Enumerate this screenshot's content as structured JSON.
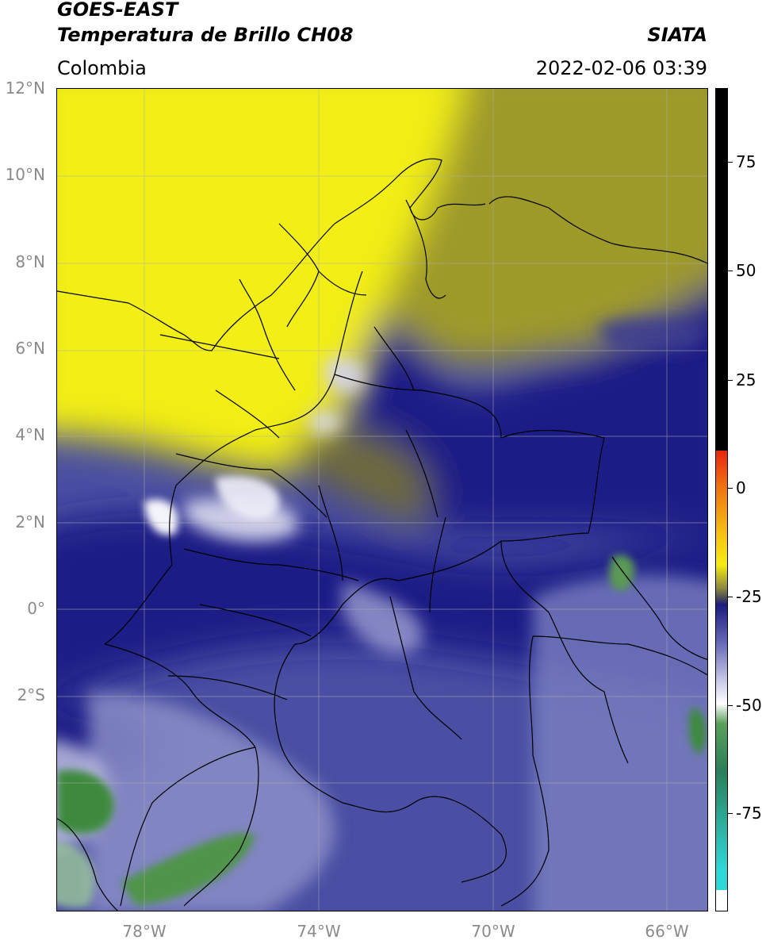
{
  "header": {
    "title_line1": "GOES-EAST",
    "title_line2": "Temperatura de Brillo CH08",
    "agency": "SIATA",
    "region": "Colombia",
    "datetime": "2022-02-06 03:39"
  },
  "map": {
    "lat_labels": [
      "12°N",
      "10°N",
      "8°N",
      "6°N",
      "4°N",
      "2°N",
      "0°",
      "2°S"
    ],
    "lon_labels": [
      "78°W",
      "74°W",
      "70°W",
      "66°W"
    ],
    "colors": {
      "dry_yellow": "#f2ee14",
      "olive": "#9e9a2a",
      "navy": "#1c1f86",
      "mid_blue": "#4b50a6",
      "light_blue": "#9a9cd0",
      "white_cloud": "#f4f4fb",
      "green": "#3e8a3e"
    }
  },
  "colorbar": {
    "labels": [
      "75",
      "50",
      "25",
      "0",
      "-25",
      "-50",
      "-75"
    ],
    "colors": {
      "black": "#000000",
      "red": "#e8250f",
      "orange": "#f09000",
      "yellow": "#f6ec12",
      "olive": "#6f6c38",
      "navy": "#1a1c80",
      "white": "#ffffff",
      "green": "#3c8a3c",
      "cyan": "#2fd8d8"
    }
  }
}
